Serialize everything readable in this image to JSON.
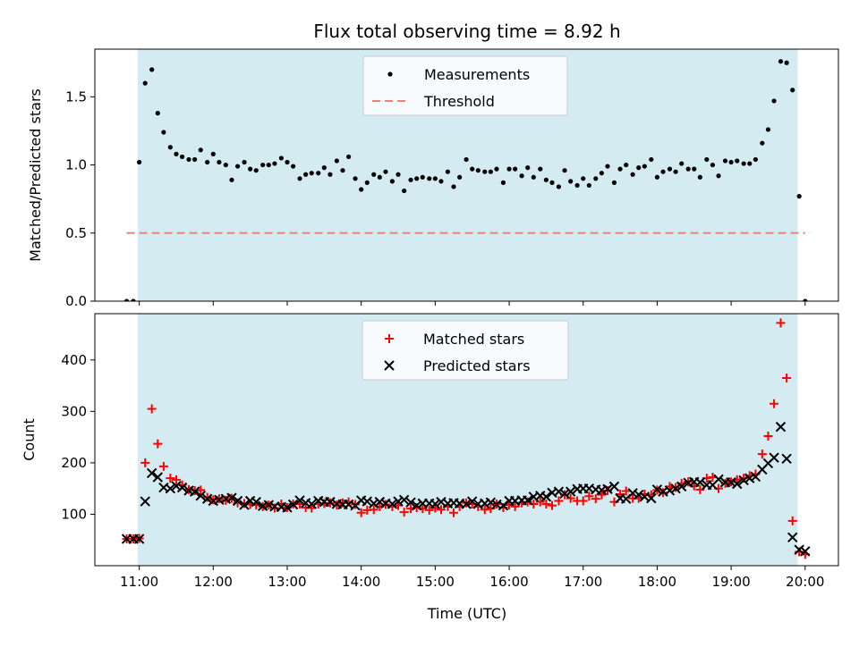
{
  "figure": {
    "title": "Flux total observing time = 8.92 h",
    "xlabel": "Time (UTC)",
    "xticks": [
      "11:00",
      "12:00",
      "13:00",
      "14:00",
      "15:00",
      "16:00",
      "17:00",
      "18:00",
      "19:00",
      "20:00"
    ]
  },
  "colors": {
    "shade": "#add8e6",
    "measurement": "#000000",
    "threshold": "#f08080",
    "matched": "#ff0000",
    "predicted": "#000000"
  },
  "chart_data": [
    {
      "type": "scatter",
      "panel": "top",
      "ylabel": "Matched/Predicted stars",
      "ylim": [
        0.0,
        1.85
      ],
      "yticks": [
        "0.0",
        "0.5",
        "1.0",
        "1.5"
      ],
      "xrange_hours": [
        10.4,
        20.45
      ],
      "shaded_interval_hours": [
        10.98,
        19.9
      ],
      "legend": {
        "placement": "upper center",
        "entries": [
          "Measurements",
          "Threshold"
        ]
      },
      "threshold": {
        "name": "Threshold",
        "value": 0.5,
        "x": [
          10.83,
          20.0
        ]
      },
      "series": [
        {
          "name": "Measurements",
          "x": [
            10.83,
            10.92,
            11.0,
            11.08,
            11.17,
            11.25,
            11.33,
            11.42,
            11.5,
            11.58,
            11.67,
            11.75,
            11.83,
            11.92,
            12.0,
            12.08,
            12.17,
            12.25,
            12.33,
            12.42,
            12.5,
            12.58,
            12.67,
            12.75,
            12.83,
            12.92,
            13.0,
            13.08,
            13.17,
            13.25,
            13.33,
            13.42,
            13.5,
            13.58,
            13.67,
            13.75,
            13.83,
            13.92,
            14.0,
            14.08,
            14.17,
            14.25,
            14.33,
            14.42,
            14.5,
            14.58,
            14.67,
            14.75,
            14.83,
            14.92,
            15.0,
            15.08,
            15.17,
            15.25,
            15.33,
            15.42,
            15.5,
            15.58,
            15.67,
            15.75,
            15.83,
            15.92,
            16.0,
            16.08,
            16.17,
            16.25,
            16.33,
            16.42,
            16.5,
            16.58,
            16.67,
            16.75,
            16.83,
            16.92,
            17.0,
            17.08,
            17.17,
            17.25,
            17.33,
            17.42,
            17.5,
            17.58,
            17.67,
            17.75,
            17.83,
            17.92,
            18.0,
            18.08,
            18.17,
            18.25,
            18.33,
            18.42,
            18.5,
            18.58,
            18.67,
            18.75,
            18.83,
            18.92,
            19.0,
            19.08,
            19.17,
            19.25,
            19.33,
            19.42,
            19.5,
            19.58,
            19.67,
            19.75,
            19.83,
            19.92,
            20.0
          ],
          "y": [
            0.0,
            0.0,
            1.02,
            1.6,
            1.7,
            1.38,
            1.24,
            1.13,
            1.08,
            1.06,
            1.04,
            1.04,
            1.11,
            1.02,
            1.08,
            1.02,
            1.0,
            0.89,
            0.99,
            1.02,
            0.97,
            0.96,
            1.0,
            1.0,
            1.01,
            1.05,
            1.02,
            0.99,
            0.9,
            0.93,
            0.94,
            0.94,
            0.98,
            0.93,
            1.03,
            0.96,
            1.06,
            0.9,
            0.82,
            0.87,
            0.93,
            0.91,
            0.95,
            0.88,
            0.93,
            0.81,
            0.89,
            0.9,
            0.91,
            0.9,
            0.9,
            0.88,
            0.95,
            0.84,
            0.91,
            1.04,
            0.97,
            0.96,
            0.95,
            0.95,
            0.97,
            0.87,
            0.97,
            0.97,
            0.92,
            0.98,
            0.91,
            0.97,
            0.89,
            0.87,
            0.84,
            0.96,
            0.88,
            0.85,
            0.9,
            0.85,
            0.9,
            0.94,
            0.99,
            0.87,
            0.97,
            1.0,
            0.93,
            0.98,
            0.99,
            1.04,
            0.91,
            0.95,
            0.97,
            0.95,
            1.01,
            0.97,
            0.97,
            0.91,
            1.04,
            1.0,
            0.92,
            1.03,
            1.02,
            1.03,
            1.01,
            1.01,
            1.04,
            1.16,
            1.26,
            1.47,
            1.76,
            1.75,
            1.55,
            0.77,
            0.0
          ]
        }
      ]
    },
    {
      "type": "scatter",
      "panel": "bottom",
      "ylabel": "Count",
      "ylim": [
        0,
        490
      ],
      "yticks": [
        "100",
        "200",
        "300",
        "400"
      ],
      "xrange_hours": [
        10.4,
        20.45
      ],
      "shaded_interval_hours": [
        10.98,
        19.9
      ],
      "legend": {
        "placement": "upper center",
        "entries": [
          "Matched stars",
          "Predicted stars"
        ]
      },
      "series": [
        {
          "name": "Matched stars",
          "marker": "plus",
          "x": [
            10.83,
            10.92,
            11.0,
            11.08,
            11.17,
            11.25,
            11.33,
            11.42,
            11.5,
            11.58,
            11.67,
            11.75,
            11.83,
            11.92,
            12.0,
            12.08,
            12.17,
            12.25,
            12.33,
            12.42,
            12.5,
            12.58,
            12.67,
            12.75,
            12.83,
            12.92,
            13.0,
            13.08,
            13.17,
            13.25,
            13.33,
            13.42,
            13.5,
            13.58,
            13.67,
            13.75,
            13.83,
            13.92,
            14.0,
            14.08,
            14.17,
            14.25,
            14.33,
            14.42,
            14.5,
            14.58,
            14.67,
            14.75,
            14.83,
            14.92,
            15.0,
            15.08,
            15.17,
            15.25,
            15.33,
            15.42,
            15.5,
            15.58,
            15.67,
            15.75,
            15.83,
            15.92,
            16.0,
            16.08,
            16.17,
            16.25,
            16.33,
            16.42,
            16.5,
            16.58,
            16.67,
            16.75,
            16.83,
            16.92,
            17.0,
            17.08,
            17.17,
            17.25,
            17.33,
            17.42,
            17.5,
            17.58,
            17.67,
            17.75,
            17.83,
            17.92,
            18.0,
            18.08,
            18.17,
            18.25,
            18.33,
            18.42,
            18.5,
            18.58,
            18.67,
            18.75,
            18.83,
            18.92,
            19.0,
            19.08,
            19.17,
            19.25,
            19.33,
            19.42,
            19.5,
            19.58,
            19.67,
            19.75,
            19.83,
            19.92,
            20.0
          ],
          "y": [
            52,
            52,
            53,
            200,
            305,
            237,
            193,
            170,
            167,
            157,
            148,
            146,
            147,
            133,
            128,
            130,
            127,
            131,
            122,
            121,
            119,
            118,
            115,
            118,
            112,
            120,
            113,
            120,
            120,
            113,
            112,
            120,
            121,
            122,
            118,
            122,
            124,
            119,
            103,
            108,
            109,
            115,
            119,
            115,
            117,
            104,
            111,
            113,
            111,
            108,
            112,
            109,
            115,
            103,
            115,
            122,
            120,
            115,
            109,
            111,
            120,
            113,
            118,
            115,
            122,
            124,
            120,
            124,
            120,
            117,
            126,
            138,
            131,
            126,
            126,
            135,
            130,
            138,
            146,
            124,
            139,
            145,
            131,
            131,
            139,
            138,
            147,
            142,
            154,
            152,
            160,
            163,
            155,
            148,
            170,
            172,
            150,
            160,
            163,
            167,
            170,
            175,
            178,
            217,
            252,
            315,
            472,
            365,
            87,
            27,
            22
          ]
        },
        {
          "name": "Predicted stars",
          "marker": "x",
          "x": [
            10.83,
            10.92,
            11.0,
            11.08,
            11.17,
            11.25,
            11.33,
            11.42,
            11.5,
            11.58,
            11.67,
            11.75,
            11.83,
            11.92,
            12.0,
            12.08,
            12.17,
            12.25,
            12.33,
            12.42,
            12.5,
            12.58,
            12.67,
            12.75,
            12.83,
            12.92,
            13.0,
            13.08,
            13.17,
            13.25,
            13.33,
            13.42,
            13.5,
            13.58,
            13.67,
            13.75,
            13.83,
            13.92,
            14.0,
            14.08,
            14.17,
            14.25,
            14.33,
            14.42,
            14.5,
            14.58,
            14.67,
            14.75,
            14.83,
            14.92,
            15.0,
            15.08,
            15.17,
            15.25,
            15.33,
            15.42,
            15.5,
            15.58,
            15.67,
            15.75,
            15.83,
            15.92,
            16.0,
            16.08,
            16.17,
            16.25,
            16.33,
            16.42,
            16.5,
            16.58,
            16.67,
            16.75,
            16.83,
            16.92,
            17.0,
            17.08,
            17.17,
            17.25,
            17.33,
            17.42,
            17.5,
            17.58,
            17.67,
            17.75,
            17.83,
            17.92,
            18.0,
            18.08,
            18.17,
            18.25,
            18.33,
            18.42,
            18.5,
            18.58,
            18.67,
            18.75,
            18.83,
            18.92,
            19.0,
            19.08,
            19.17,
            19.25,
            19.33,
            19.42,
            19.5,
            19.58,
            19.67,
            19.75,
            19.83,
            19.92,
            20.0
          ],
          "y": [
            52,
            52,
            52,
            125,
            180,
            172,
            152,
            150,
            155,
            152,
            146,
            144,
            136,
            130,
            126,
            128,
            130,
            132,
            126,
            118,
            126,
            124,
            116,
            118,
            115,
            114,
            113,
            119,
            127,
            122,
            120,
            126,
            124,
            124,
            120,
            119,
            119,
            117,
            127,
            125,
            121,
            124,
            121,
            120,
            125,
            128,
            123,
            117,
            121,
            121,
            120,
            124,
            121,
            122,
            121,
            120,
            125,
            120,
            121,
            123,
            119,
            117,
            126,
            126,
            127,
            127,
            134,
            136,
            134,
            142,
            144,
            140,
            144,
            149,
            150,
            150,
            148,
            147,
            149,
            154,
            131,
            130,
            141,
            138,
            134,
            131,
            148,
            144,
            146,
            150,
            154,
            161,
            163,
            162,
            157,
            157,
            168,
            162,
            162,
            159,
            166,
            170,
            173,
            187,
            199,
            210,
            270,
            208,
            55,
            31,
            28
          ]
        }
      ]
    }
  ]
}
